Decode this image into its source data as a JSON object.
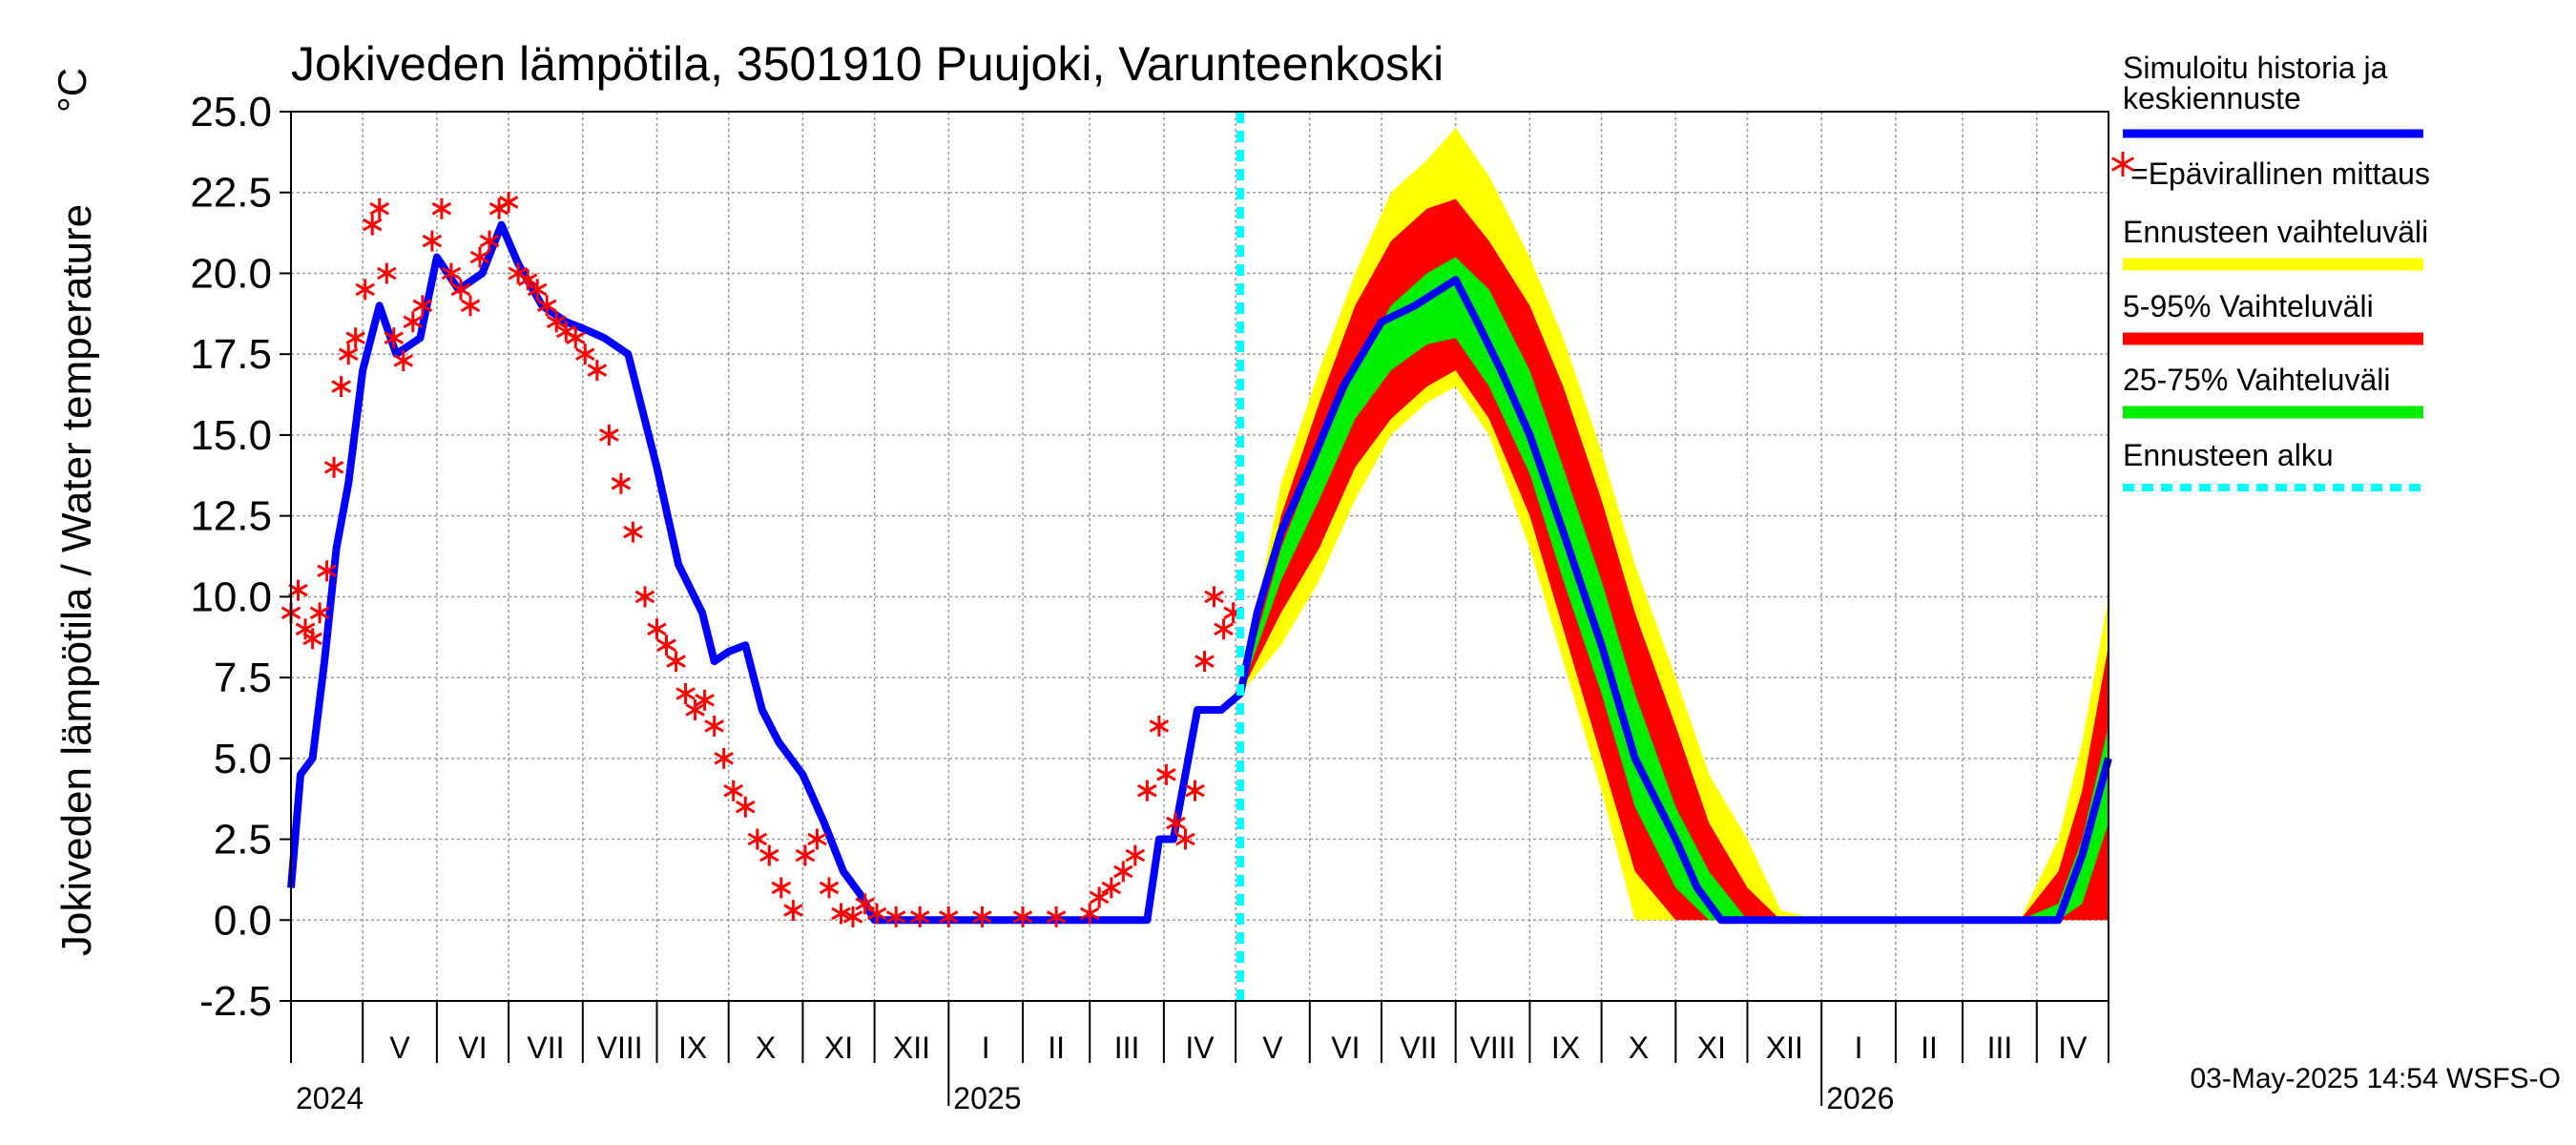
{
  "chart_data": {
    "type": "line",
    "title": "Jokiveden lämpötila, 3501910 Puujoki, Varunteenkoski",
    "unit": "°C",
    "ylabel": "Jokiveden lämpötila / Water temperature",
    "ylim": [
      -2.5,
      25.0
    ],
    "yticks": [
      "25.0",
      "22.5",
      "20.0",
      "17.5",
      "15.0",
      "12.5",
      "10.0",
      "7.5",
      "5.0",
      "2.5",
      "0.0",
      "-2.5"
    ],
    "x_range": [
      "2024-04-01",
      "2026-05-01"
    ],
    "forecast_start": "2025-05-03",
    "month_labels": [
      "V",
      "VI",
      "VII",
      "VIII",
      "IX",
      "X",
      "XI",
      "XII",
      "I",
      "II",
      "III",
      "IV",
      "V",
      "VI",
      "VII",
      "VIII",
      "IX",
      "X",
      "XI",
      "XII",
      "I",
      "II",
      "III",
      "IV"
    ],
    "year_labels": [
      "2024",
      "2025",
      "2026"
    ],
    "grid": true,
    "footer": "03-May-2025 14:54 WSFS-O",
    "legend": {
      "position": "right",
      "items": [
        {
          "label": "Simuloitu historia ja keskiennuste",
          "color": "#0000ff",
          "style": "line"
        },
        {
          "label": "=Epävirallinen mittaus",
          "color": "#ff0000",
          "style": "star"
        },
        {
          "label": "Ennusteen vaihteluväli",
          "color": "#ffff00",
          "style": "band"
        },
        {
          "label": "5-95% Vaihteluväli",
          "color": "#ff0000",
          "style": "band"
        },
        {
          "label": "25-75% Vaihteluväli",
          "color": "#00ee00",
          "style": "band"
        },
        {
          "label": "Ennusteen alku",
          "color": "#00ffff",
          "style": "dashed"
        }
      ]
    },
    "series": [
      {
        "name": "Simuloitu historia ja keskiennuste",
        "color": "#0000ff",
        "x": [
          "2024-04-01",
          "2024-04-05",
          "2024-04-10",
          "2024-04-15",
          "2024-04-20",
          "2024-04-25",
          "2024-05-01",
          "2024-05-08",
          "2024-05-15",
          "2024-05-25",
          "2024-06-01",
          "2024-06-10",
          "2024-06-20",
          "2024-06-28",
          "2024-07-05",
          "2024-07-15",
          "2024-07-25",
          "2024-08-01",
          "2024-08-10",
          "2024-08-20",
          "2024-09-01",
          "2024-09-10",
          "2024-09-20",
          "2024-09-25",
          "2024-10-01",
          "2024-10-08",
          "2024-10-15",
          "2024-10-22",
          "2024-11-01",
          "2024-11-10",
          "2024-11-18",
          "2024-11-25",
          "2024-12-01",
          "2024-12-10",
          "2024-12-20",
          "2025-01-01",
          "2025-02-01",
          "2025-03-01",
          "2025-03-20",
          "2025-03-25",
          "2025-03-30",
          "2025-04-05",
          "2025-04-15",
          "2025-04-25",
          "2025-05-03",
          "2025-05-10",
          "2025-05-20",
          "2025-06-01",
          "2025-06-15",
          "2025-07-01",
          "2025-07-15",
          "2025-08-01",
          "2025-08-10",
          "2025-08-20",
          "2025-09-01",
          "2025-09-15",
          "2025-10-01",
          "2025-10-15",
          "2025-11-01",
          "2025-11-10",
          "2025-11-20",
          "2025-12-01",
          "2026-01-01",
          "2026-02-01",
          "2026-03-01",
          "2026-04-01",
          "2026-04-10",
          "2026-04-20",
          "2026-05-01"
        ],
        "y": [
          1.0,
          4.5,
          5.0,
          8.0,
          11.5,
          13.5,
          17.0,
          19.0,
          17.5,
          18.0,
          20.5,
          19.5,
          20.0,
          21.5,
          20.3,
          19.0,
          18.5,
          18.3,
          18.0,
          17.5,
          14.0,
          11.0,
          9.5,
          8.0,
          8.3,
          8.5,
          6.5,
          5.5,
          4.5,
          3.0,
          1.5,
          0.8,
          0.0,
          0.0,
          0.0,
          0.0,
          0.0,
          0.0,
          0.0,
          0.0,
          2.5,
          2.5,
          6.5,
          6.5,
          7.0,
          9.5,
          12.0,
          14.0,
          16.5,
          18.5,
          19.0,
          19.8,
          18.5,
          17.0,
          15.0,
          12.0,
          8.5,
          5.0,
          2.5,
          1.0,
          0.0,
          0.0,
          0.0,
          0.0,
          0.0,
          0.0,
          0.0,
          2.0,
          5.0
        ]
      },
      {
        "name": "=Epävirallinen mittaus",
        "color": "#ff0000",
        "x": [
          "2024-04-01",
          "2024-04-04",
          "2024-04-07",
          "2024-04-10",
          "2024-04-13",
          "2024-04-16",
          "2024-04-19",
          "2024-04-22",
          "2024-04-25",
          "2024-04-28",
          "2024-05-02",
          "2024-05-05",
          "2024-05-08",
          "2024-05-11",
          "2024-05-14",
          "2024-05-18",
          "2024-05-22",
          "2024-05-26",
          "2024-05-30",
          "2024-06-03",
          "2024-06-07",
          "2024-06-11",
          "2024-06-15",
          "2024-06-19",
          "2024-06-23",
          "2024-06-27",
          "2024-07-01",
          "2024-07-05",
          "2024-07-09",
          "2024-07-13",
          "2024-07-17",
          "2024-07-21",
          "2024-07-25",
          "2024-07-29",
          "2024-08-02",
          "2024-08-07",
          "2024-08-12",
          "2024-08-17",
          "2024-08-22",
          "2024-08-27",
          "2024-09-01",
          "2024-09-05",
          "2024-09-09",
          "2024-09-13",
          "2024-09-17",
          "2024-09-21",
          "2024-09-25",
          "2024-09-29",
          "2024-10-03",
          "2024-10-08",
          "2024-10-13",
          "2024-10-18",
          "2024-10-23",
          "2024-10-28",
          "2024-11-02",
          "2024-11-07",
          "2024-11-12",
          "2024-11-17",
          "2024-11-22",
          "2024-11-27",
          "2024-12-02",
          "2024-12-10",
          "2024-12-20",
          "2025-01-01",
          "2025-01-15",
          "2025-02-01",
          "2025-02-15",
          "2025-03-01",
          "2025-03-05",
          "2025-03-10",
          "2025-03-15",
          "2025-03-20",
          "2025-03-25",
          "2025-03-30",
          "2025-04-02",
          "2025-04-06",
          "2025-04-10",
          "2025-04-14",
          "2025-04-18",
          "2025-04-22",
          "2025-04-26",
          "2025-04-30"
        ],
        "y": [
          9.5,
          10.2,
          9.0,
          8.7,
          9.5,
          10.8,
          14.0,
          16.5,
          17.5,
          18.0,
          19.5,
          21.5,
          22.0,
          20.0,
          18.0,
          17.3,
          18.5,
          19.0,
          21.0,
          22.0,
          20.0,
          19.5,
          19.0,
          20.5,
          21.0,
          22.0,
          22.2,
          20.0,
          19.8,
          19.5,
          19.0,
          18.5,
          18.2,
          18.0,
          17.5,
          17.0,
          15.0,
          13.5,
          12.0,
          10.0,
          9.0,
          8.5,
          8.0,
          7.0,
          6.5,
          6.8,
          6.0,
          5.0,
          4.0,
          3.5,
          2.5,
          2.0,
          1.0,
          0.3,
          2.0,
          2.5,
          1.0,
          0.2,
          0.1,
          0.5,
          0.2,
          0.1,
          0.1,
          0.1,
          0.1,
          0.1,
          0.1,
          0.2,
          0.7,
          1.0,
          1.5,
          2.0,
          4.0,
          6.0,
          4.5,
          3.0,
          2.5,
          4.0,
          8.0,
          10.0,
          9.0,
          9.5
        ]
      }
    ],
    "bands": [
      {
        "name": "Ennusteen vaihteluväli",
        "color": "#ffff00",
        "x": [
          "2025-05-03",
          "2025-05-20",
          "2025-06-05",
          "2025-06-20",
          "2025-07-05",
          "2025-07-20",
          "2025-08-01",
          "2025-08-15",
          "2025-09-01",
          "2025-09-15",
          "2025-10-01",
          "2025-10-15",
          "2025-11-01",
          "2025-11-15",
          "2025-12-01",
          "2025-12-15",
          "2026-01-01",
          "2026-02-01",
          "2026-03-01",
          "2026-03-25",
          "2026-04-10",
          "2026-04-20",
          "2026-05-01"
        ],
        "lower": [
          7.0,
          8.5,
          10.5,
          13.0,
          15.0,
          16.0,
          16.5,
          15.0,
          11.5,
          8.0,
          4.0,
          0.0,
          0.0,
          0.0,
          0.0,
          0.0,
          0.0,
          0.0,
          0.0,
          0.0,
          0.0,
          0.0,
          0.0
        ],
        "upper": [
          7.0,
          13.5,
          17.0,
          20.0,
          22.5,
          23.5,
          24.5,
          23.0,
          20.5,
          18.0,
          14.5,
          11.0,
          7.5,
          4.5,
          2.5,
          0.3,
          0.0,
          0.0,
          0.0,
          0.0,
          2.5,
          5.5,
          10.0
        ]
      },
      {
        "name": "5-95% Vaihteluväli",
        "color": "#ff0000",
        "x": [
          "2025-05-03",
          "2025-05-20",
          "2025-06-05",
          "2025-06-20",
          "2025-07-05",
          "2025-07-20",
          "2025-08-01",
          "2025-08-15",
          "2025-09-01",
          "2025-09-15",
          "2025-10-01",
          "2025-10-15",
          "2025-11-01",
          "2025-11-15",
          "2025-12-01",
          "2025-12-15",
          "2026-01-01",
          "2026-02-01",
          "2026-03-01",
          "2026-03-25",
          "2026-04-10",
          "2026-04-20",
          "2026-05-01"
        ],
        "lower": [
          7.0,
          9.5,
          11.5,
          14.0,
          15.5,
          16.5,
          17.0,
          15.5,
          12.5,
          9.0,
          5.0,
          1.5,
          0.0,
          0.0,
          0.0,
          0.0,
          0.0,
          0.0,
          0.0,
          0.0,
          0.0,
          0.0,
          0.0
        ],
        "upper": [
          7.0,
          12.5,
          16.0,
          19.0,
          21.0,
          22.0,
          22.3,
          21.0,
          19.0,
          16.5,
          13.0,
          9.5,
          6.0,
          3.0,
          1.0,
          0.0,
          0.0,
          0.0,
          0.0,
          0.0,
          1.5,
          4.0,
          8.5
        ]
      },
      {
        "name": "25-75% Vaihteluväli",
        "color": "#00ee00",
        "x": [
          "2025-05-03",
          "2025-05-20",
          "2025-06-05",
          "2025-06-20",
          "2025-07-05",
          "2025-07-20",
          "2025-08-01",
          "2025-08-15",
          "2025-09-01",
          "2025-09-15",
          "2025-10-01",
          "2025-10-15",
          "2025-11-01",
          "2025-11-15",
          "2025-12-01",
          "2025-12-15",
          "2026-01-01",
          "2026-02-01",
          "2026-03-01",
          "2026-03-25",
          "2026-04-10",
          "2026-04-20",
          "2026-05-01"
        ],
        "lower": [
          7.0,
          10.5,
          13.0,
          15.5,
          17.0,
          17.8,
          18.0,
          16.5,
          13.8,
          10.5,
          7.0,
          3.5,
          1.0,
          0.0,
          0.0,
          0.0,
          0.0,
          0.0,
          0.0,
          0.0,
          0.0,
          0.5,
          3.0
        ],
        "upper": [
          7.0,
          11.5,
          14.5,
          17.0,
          19.0,
          20.0,
          20.5,
          19.5,
          17.0,
          14.0,
          10.5,
          7.0,
          3.5,
          1.5,
          0.0,
          0.0,
          0.0,
          0.0,
          0.0,
          0.0,
          0.5,
          2.5,
          6.0
        ]
      }
    ]
  }
}
